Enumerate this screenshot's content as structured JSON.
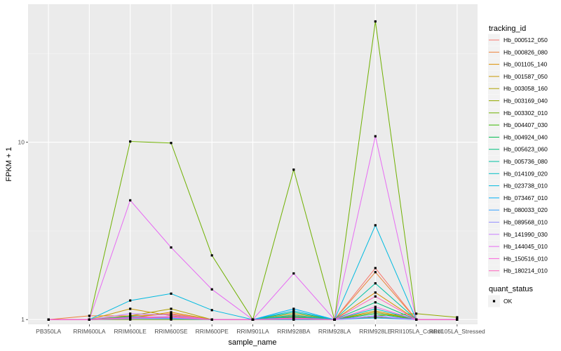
{
  "chart_data": {
    "type": "line",
    "xlabel": "sample_name",
    "ylabel": "FPKM + 1",
    "y_scale": "log10",
    "ylim": [
      0.94,
      60
    ],
    "y_ticks": [
      {
        "value": 1,
        "label": "1"
      },
      {
        "value": 10,
        "label": "10"
      }
    ],
    "grid": true,
    "categories": [
      "PB350LA",
      "RRIM600LA",
      "RRIM600LE",
      "RRIM600SE",
      "RRIM600PE",
      "RRIM901LA",
      "RRIM928BA",
      "RRIM928LA",
      "RRIM928LE",
      "RRII105LA_Control",
      "RRII105LA_Stressed"
    ],
    "legend": {
      "title": "tracking_id",
      "position": "right",
      "entries": [
        "Hb_000512_050",
        "Hb_000826_080",
        "Hb_001105_140",
        "Hb_001587_050",
        "Hb_003058_160",
        "Hb_003169_040",
        "Hb_003302_010",
        "Hb_004407_030",
        "Hb_004924_040",
        "Hb_005623_060",
        "Hb_005736_080",
        "Hb_014109_020",
        "Hb_023738_010",
        "Hb_073467_010",
        "Hb_080033_020",
        "Hb_089568_010",
        "Hb_141990_030",
        "Hb_144045_010",
        "Hb_150516_010",
        "Hb_180214_010"
      ]
    },
    "shape_legend": {
      "title": "quant_status",
      "entries": [
        "OK"
      ]
    },
    "colors": [
      "#F8766D",
      "#EC8239",
      "#DB8E00",
      "#C79800",
      "#AFA100",
      "#93AA00",
      "#6FB000",
      "#39B600",
      "#00BB4E",
      "#00BF7D",
      "#00C1A3",
      "#00BFC4",
      "#00BAE0",
      "#00B0F6",
      "#35A2FF",
      "#9590FF",
      "#C77CFF",
      "#E76BF3",
      "#FA62DB",
      "#FF62BC"
    ],
    "series": [
      {
        "name": "Hb_000512_050",
        "values": [
          1.0,
          1.0,
          1.03,
          1.08,
          1.0,
          1.0,
          1.02,
          1.0,
          1.95,
          1.0,
          1.0
        ]
      },
      {
        "name": "Hb_000826_080",
        "values": [
          1.0,
          1.05,
          1.05,
          1.07,
          1.0,
          1.0,
          1.03,
          1.0,
          1.85,
          1.0,
          1.0
        ]
      },
      {
        "name": "Hb_001105_140",
        "values": [
          1.0,
          1.0,
          1.02,
          1.1,
          1.0,
          1.0,
          1.05,
          1.0,
          1.42,
          1.0,
          1.0
        ]
      },
      {
        "name": "Hb_001587_050",
        "values": [
          1.0,
          1.0,
          1.15,
          1.05,
          1.0,
          1.0,
          1.08,
          1.0,
          1.12,
          1.0,
          1.0
        ]
      },
      {
        "name": "Hb_003058_160",
        "values": [
          1.0,
          1.0,
          1.05,
          1.15,
          1.0,
          1.0,
          1.02,
          1.0,
          1.1,
          1.0,
          1.0
        ]
      },
      {
        "name": "Hb_003169_040",
        "values": [
          1.0,
          1.0,
          1.0,
          1.0,
          1.0,
          1.0,
          1.0,
          1.0,
          1.05,
          1.08,
          1.03
        ]
      },
      {
        "name": "Hb_003302_010",
        "values": [
          1.0,
          1.0,
          10.1,
          9.9,
          2.3,
          1.0,
          7.0,
          1.0,
          48.0,
          1.0,
          1.0
        ]
      },
      {
        "name": "Hb_004407_030",
        "values": [
          1.0,
          1.0,
          1.01,
          1.02,
          1.0,
          1.0,
          1.03,
          1.0,
          1.03,
          1.0,
          1.0
        ]
      },
      {
        "name": "Hb_004924_040",
        "values": [
          1.0,
          1.0,
          1.02,
          1.01,
          1.0,
          1.0,
          1.01,
          1.0,
          1.08,
          1.0,
          1.0
        ]
      },
      {
        "name": "Hb_005623_060",
        "values": [
          1.0,
          1.0,
          1.04,
          1.03,
          1.0,
          1.0,
          1.1,
          1.0,
          1.25,
          1.0,
          1.0
        ]
      },
      {
        "name": "Hb_005736_080",
        "values": [
          1.0,
          1.0,
          1.03,
          1.02,
          1.0,
          1.0,
          1.06,
          1.0,
          1.6,
          1.0,
          1.0
        ]
      },
      {
        "name": "Hb_014109_020",
        "values": [
          1.0,
          1.0,
          1.02,
          1.02,
          1.0,
          1.0,
          1.04,
          1.0,
          1.15,
          1.0,
          1.0
        ]
      },
      {
        "name": "Hb_023738_010",
        "values": [
          1.0,
          1.0,
          1.28,
          1.4,
          1.13,
          1.0,
          1.12,
          1.0,
          3.4,
          1.0,
          1.0
        ]
      },
      {
        "name": "Hb_073467_010",
        "values": [
          1.0,
          1.0,
          1.02,
          1.03,
          1.0,
          1.0,
          1.15,
          1.0,
          1.05,
          1.0,
          1.0
        ]
      },
      {
        "name": "Hb_080033_020",
        "values": [
          1.0,
          1.0,
          1.01,
          1.01,
          1.0,
          1.0,
          1.0,
          1.0,
          1.02,
          1.0,
          1.0
        ]
      },
      {
        "name": "Hb_089568_010",
        "values": [
          1.0,
          1.0,
          1.01,
          1.02,
          1.0,
          1.0,
          1.02,
          1.0,
          1.05,
          1.0,
          1.0
        ]
      },
      {
        "name": "Hb_141990_030",
        "values": [
          1.0,
          1.0,
          1.08,
          1.06,
          1.0,
          1.0,
          1.01,
          1.0,
          1.04,
          1.0,
          1.0
        ]
      },
      {
        "name": "Hb_144045_010",
        "values": [
          1.0,
          1.0,
          4.7,
          2.55,
          1.48,
          1.0,
          1.82,
          1.0,
          10.8,
          1.0,
          1.0
        ]
      },
      {
        "name": "Hb_150516_010",
        "values": [
          1.0,
          1.0,
          1.03,
          1.04,
          1.0,
          1.0,
          1.02,
          1.0,
          1.18,
          1.0,
          1.0
        ]
      },
      {
        "name": "Hb_180214_010",
        "values": [
          1.0,
          1.0,
          1.02,
          1.03,
          1.0,
          1.0,
          1.01,
          1.0,
          1.35,
          1.0,
          1.0
        ]
      }
    ]
  }
}
